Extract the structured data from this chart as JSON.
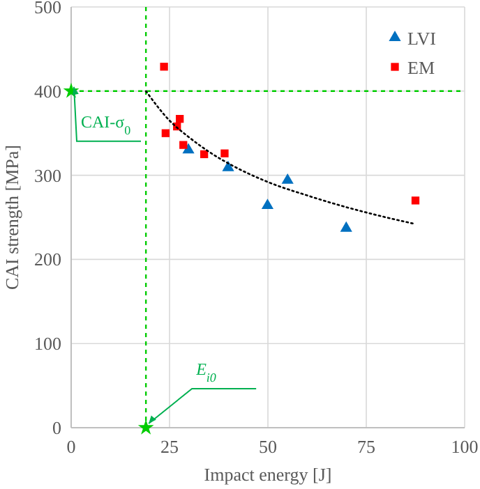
{
  "chart_data": {
    "type": "scatter",
    "xlabel": "Impact energy [J]",
    "ylabel": "CAI strength [MPa]",
    "xlim": [
      0,
      100
    ],
    "xticks": [
      0,
      25,
      50,
      75,
      100
    ],
    "ylim": [
      0,
      500
    ],
    "yticks": [
      0,
      100,
      200,
      300,
      400,
      500
    ],
    "grid": true,
    "legend": "top right",
    "series": [
      {
        "name": "LVI",
        "marker": "triangle",
        "color": "#0070c0",
        "x": [
          29.8,
          39.9,
          49.9,
          55,
          69.9
        ],
        "values": [
          330,
          309,
          264,
          294,
          237
        ]
      },
      {
        "name": "EM",
        "marker": "square",
        "color": "#ff0000",
        "x": [
          23.6,
          24,
          26.9,
          27.6,
          28.5,
          33.8,
          39,
          87.5
        ],
        "values": [
          429,
          350,
          358,
          367,
          336,
          325,
          326,
          270
        ]
      },
      {
        "type": "line",
        "marker": "none",
        "line_style": "dotted",
        "color": "#000000",
        "x": [
          19,
          25,
          30,
          35,
          40,
          50,
          60,
          70,
          80,
          87.5
        ],
        "values": [
          400,
          365,
          345,
          328,
          314,
          292,
          276,
          262,
          250,
          242
        ]
      },
      {
        "marker": "star",
        "color": "#00cc00",
        "x": [
          0,
          19
        ],
        "values": [
          400,
          0
        ]
      }
    ],
    "ref_lines": [
      {
        "axis": "y",
        "value": 400,
        "color": "#00cc00",
        "line_style": "dashed"
      },
      {
        "axis": "x",
        "value": 19,
        "color": "#00cc00",
        "line_style": "dashed"
      }
    ],
    "annotations": [
      {
        "text": "CAI-σ$_{0}$",
        "x": 0,
        "y": 400
      },
      {
        "text": "E$_{i0}$",
        "x": 19,
        "y": 0
      }
    ]
  }
}
